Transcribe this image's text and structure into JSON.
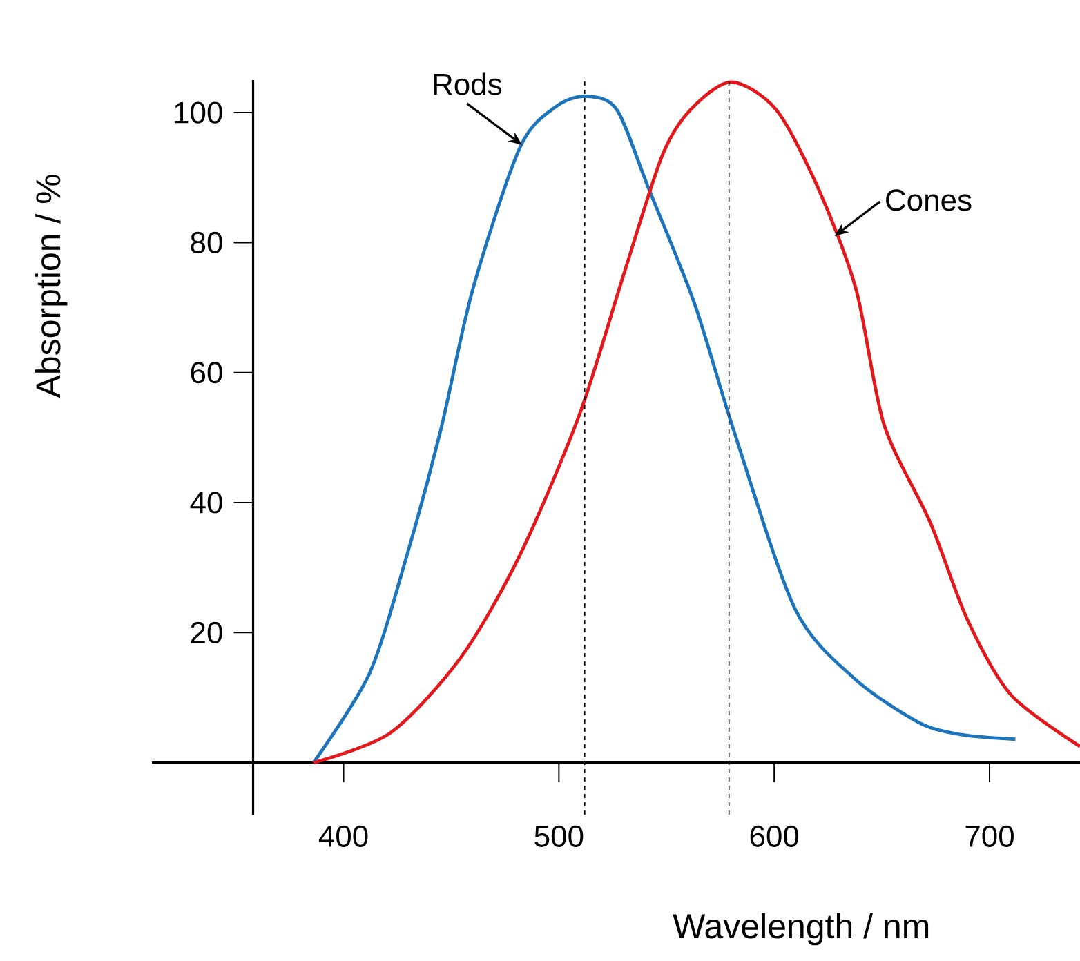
{
  "chart_data": {
    "type": "line",
    "xlabel": "Wavelength / nm",
    "ylabel": "Absorption / %",
    "xlim": [
      311,
      742
    ],
    "ylim": [
      -8,
      105
    ],
    "xticks": [
      400,
      500,
      600,
      700
    ],
    "yticks": [
      20,
      40,
      60,
      80,
      100
    ],
    "marker": "none",
    "line_style": "solid",
    "series": [
      {
        "color": "#1c75bc",
        "x": [
          386,
          412,
          429.5,
          445,
          460,
          482,
          499,
          513,
          527,
          541.7,
          563,
          581.4,
          609.6,
          637,
          667,
          687,
          712
        ],
        "values": [
          0,
          13.7,
          32,
          51,
          72.8,
          94.7,
          101,
          102.5,
          100.4,
          88.3,
          70.6,
          50.9,
          23.7,
          13,
          6.2,
          4.3,
          3.6
        ]
      },
      {
        "color": "#e3181d",
        "x": [
          386,
          421.8,
          454.5,
          482,
          509.6,
          530,
          548,
          561,
          580,
          601,
          620.5,
          638,
          651,
          672.4,
          689.7,
          710,
          742
        ],
        "values": [
          0,
          4.6,
          16.2,
          32,
          53.6,
          75,
          93.4,
          100.4,
          104.7,
          100.4,
          88.3,
          72.8,
          52,
          37,
          22,
          10.4,
          2.5
        ]
      }
    ],
    "ref_lines": [
      {
        "axis": "x",
        "value": 512,
        "line_style": "dashed"
      },
      {
        "axis": "x",
        "value": 579,
        "line_style": "dashed"
      }
    ],
    "annotations": [
      {
        "text": "Rods",
        "x": 483,
        "y": 95
      },
      {
        "text": "Cones",
        "x": 628,
        "y": 81
      }
    ]
  }
}
